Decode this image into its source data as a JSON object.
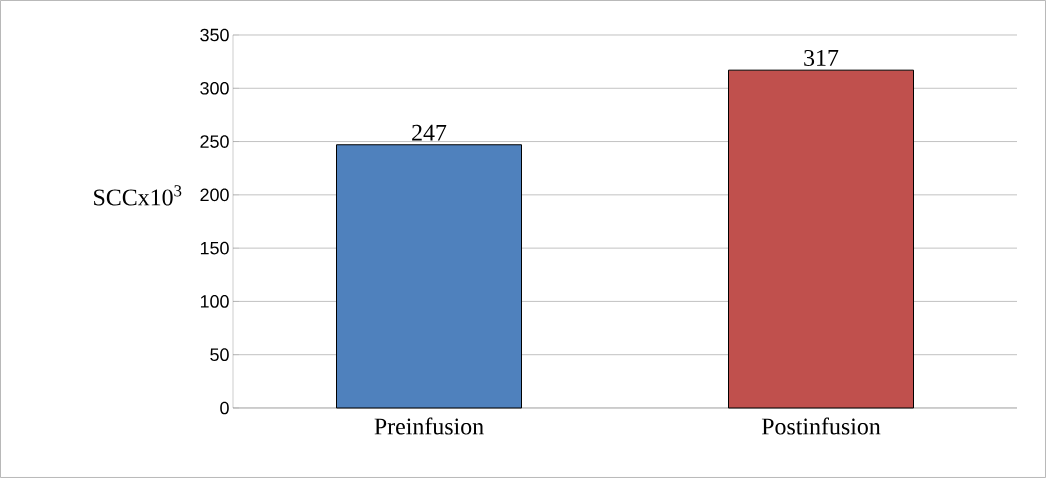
{
  "chart_data": {
    "type": "bar",
    "ylabel": "SCCx10$^{3}$",
    "categories": [
      "Preinfusion",
      "Postinfusion"
    ],
    "values": [
      247,
      317
    ],
    "colors": [
      "#4f81bd",
      "#c0504d"
    ],
    "ylim": [
      0,
      350
    ],
    "yticks": [
      0,
      50,
      100,
      150,
      200,
      250,
      300,
      350
    ],
    "grid": "y",
    "data_labels": true
  }
}
